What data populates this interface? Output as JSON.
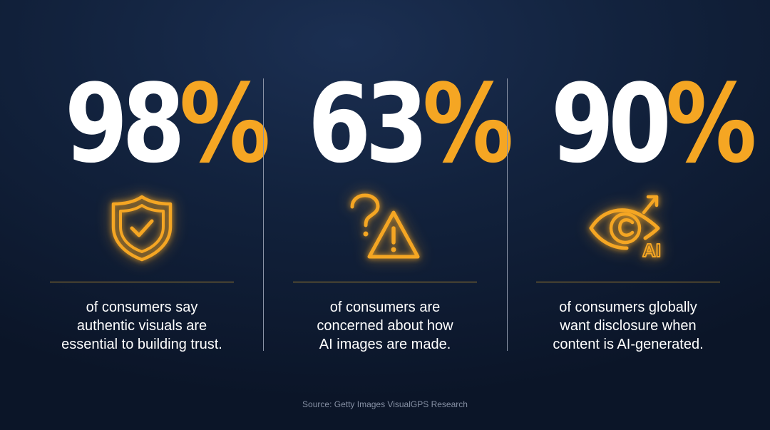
{
  "stats": [
    {
      "value": "98",
      "percent": "%",
      "icon": "shield-check-icon",
      "caption_lines": [
        "of consumers say",
        "authentic visuals are",
        "essential to building trust."
      ]
    },
    {
      "value": "63",
      "percent": "%",
      "icon": "question-warning-icon",
      "caption_lines": [
        "of consumers are",
        "concerned about how",
        "AI images are made."
      ]
    },
    {
      "value": "90",
      "percent": "%",
      "icon": "eye-ai-icon",
      "icon_text": "AI",
      "caption_lines": [
        "of consumers globally",
        "want disclosure when",
        "content is AI-generated."
      ]
    }
  ],
  "source": "Source: Getty Images VisualGPS Research",
  "colors": {
    "background": "#12223d",
    "accent": "#f5a623",
    "text": "#ffffff",
    "rule": "#a8832f",
    "divider": "#8a93a6",
    "source_text": "#8690a4"
  }
}
